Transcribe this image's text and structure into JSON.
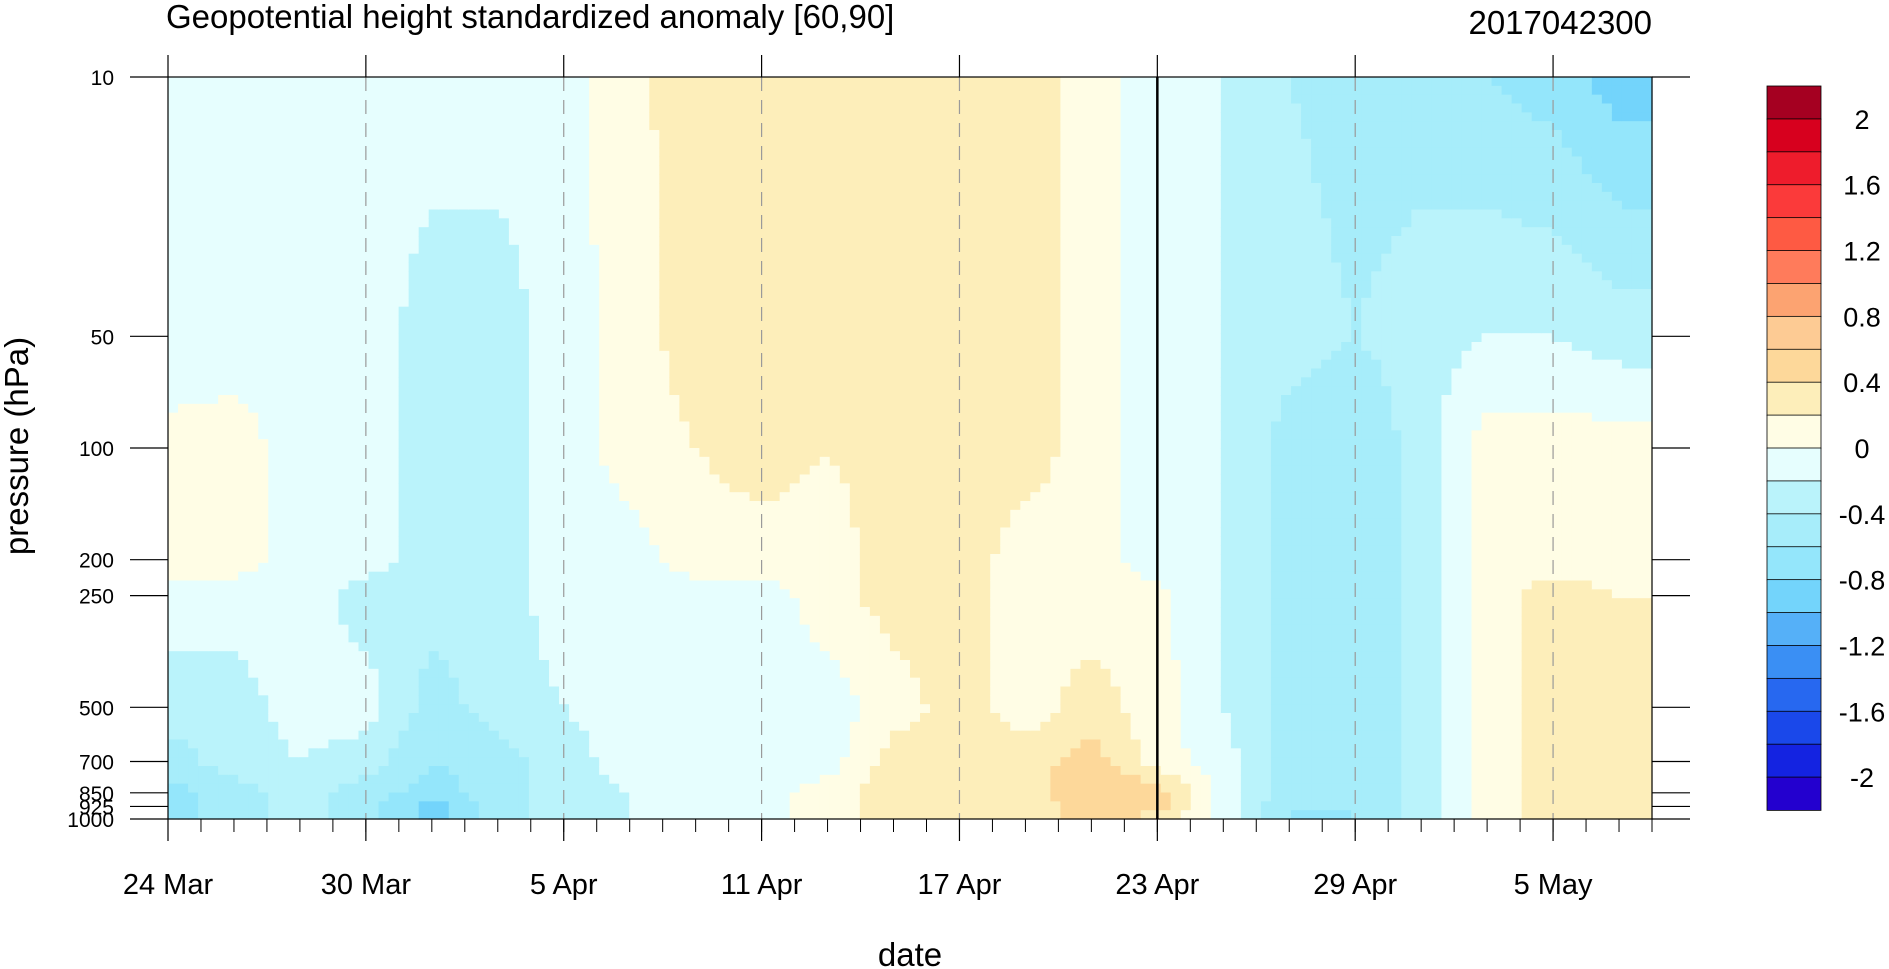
{
  "chart_data": {
    "type": "contour",
    "title": "Geopotential height standardized anomaly [60,90]",
    "timestamp": "2017042300",
    "xlabel": "date",
    "ylabel": "pressure (hPa)",
    "x_ticks": [
      "24 Mar",
      "30 Mar",
      "5 Apr",
      "11 Apr",
      "17 Apr",
      "23 Apr",
      "29 Apr",
      "5 May"
    ],
    "x_range": [
      "24 Mar",
      "8 May"
    ],
    "y_ticks": [
      "10",
      "50",
      "100",
      "200",
      "250",
      "500",
      "700",
      "850",
      "925",
      "1000"
    ],
    "y_range": [
      10,
      1000
    ],
    "y_scale": "log-pressure, top = 10",
    "marked_date": "23 Apr",
    "colorbar": {
      "labels": [
        "2",
        "1.6",
        "1.2",
        "0.8",
        "0.4",
        "0",
        "-0.4",
        "-0.8",
        "-1.2",
        "-1.6",
        "-2"
      ],
      "levels": [
        2.2,
        2.0,
        1.8,
        1.6,
        1.4,
        1.2,
        1.0,
        0.8,
        0.6,
        0.4,
        0.2,
        0.0,
        -0.2,
        -0.4,
        -0.6,
        -0.8,
        -1.0,
        -1.2,
        -1.4,
        -1.6,
        -1.8,
        -2.0,
        -2.2
      ],
      "colors": [
        "#a50021",
        "#d7001e",
        "#ee1c2c",
        "#fb3a3a",
        "#fe5a43",
        "#ff7b5b",
        "#fca371",
        "#fdcb94",
        "#fdd89a",
        "#fdeeba",
        "#fffde5",
        "#e6fefe",
        "#baf3fb",
        "#a7edfa",
        "#94e6fb",
        "#73d4fb",
        "#55b0f8",
        "#3a8ff4",
        "#2768f0",
        "#1a48ea",
        "#1423e1",
        "#2300cf"
      ]
    },
    "dates": [
      "24 Mar",
      "26 Mar",
      "28 Mar",
      "30 Mar",
      "1 Apr",
      "3 Apr",
      "5 Apr",
      "7 Apr",
      "9 Apr",
      "11 Apr",
      "13 Apr",
      "15 Apr",
      "17 Apr",
      "19 Apr",
      "21 Apr",
      "23 Apr",
      "25 Apr",
      "27 Apr",
      "29 Apr",
      "1 May",
      "3 May",
      "5 May",
      "7 May"
    ],
    "levels_hpa": [
      10,
      50,
      100,
      200,
      250,
      500,
      700,
      850,
      925,
      1000
    ],
    "values": [
      [
        -0.2,
        -0.1,
        -0.1,
        -0.1,
        -0.1,
        -0.1,
        -0.1,
        0.15,
        0.3,
        0.3,
        0.3,
        0.3,
        0.3,
        0.3,
        0.1,
        -0.1,
        -0.2,
        -0.4,
        -0.5,
        -0.5,
        -0.6,
        -0.7,
        -0.9
      ],
      [
        -0.2,
        -0.1,
        -0.1,
        -0.1,
        -0.3,
        -0.3,
        -0.1,
        0.1,
        0.3,
        0.3,
        0.3,
        0.3,
        0.3,
        0.3,
        0.1,
        -0.1,
        -0.2,
        -0.3,
        -0.4,
        -0.3,
        -0.2,
        -0.2,
        -0.3
      ],
      [
        0.1,
        0.1,
        -0.1,
        -0.1,
        -0.3,
        -0.3,
        -0.1,
        0.1,
        0.2,
        0.3,
        0.2,
        0.3,
        0.3,
        0.3,
        0.1,
        -0.1,
        -0.2,
        -0.5,
        -0.6,
        -0.3,
        0.1,
        0.1,
        0.1
      ],
      [
        0.1,
        0.1,
        -0.1,
        -0.1,
        -0.3,
        -0.3,
        -0.1,
        -0.1,
        0.1,
        0.1,
        0.1,
        0.3,
        0.3,
        0.1,
        0.1,
        -0.1,
        -0.2,
        -0.5,
        -0.6,
        -0.3,
        0.1,
        0.1,
        0.1
      ],
      [
        -0.1,
        -0.1,
        -0.1,
        -0.3,
        -0.3,
        -0.3,
        -0.1,
        -0.1,
        -0.1,
        -0.1,
        0.1,
        0.3,
        0.3,
        0.1,
        0.1,
        0.05,
        -0.2,
        -0.5,
        -0.6,
        -0.3,
        0.1,
        0.3,
        0.2
      ],
      [
        -0.3,
        -0.3,
        -0.1,
        -0.1,
        -0.5,
        -0.3,
        -0.2,
        -0.1,
        -0.1,
        -0.1,
        -0.1,
        0.1,
        0.3,
        0.1,
        0.3,
        0.1,
        -0.2,
        -0.5,
        -0.6,
        -0.3,
        0.1,
        0.3,
        0.3
      ],
      [
        -0.5,
        -0.3,
        -0.2,
        -0.3,
        -0.6,
        -0.5,
        -0.3,
        -0.1,
        -0.1,
        -0.1,
        -0.1,
        0.3,
        0.3,
        0.3,
        0.5,
        0.1,
        -0.1,
        -0.5,
        -0.6,
        -0.3,
        0.1,
        0.3,
        0.3
      ],
      [
        -0.7,
        -0.5,
        -0.3,
        -0.5,
        -0.7,
        -0.5,
        -0.3,
        -0.2,
        -0.1,
        -0.1,
        0.1,
        0.3,
        0.3,
        0.3,
        0.6,
        0.5,
        -0.1,
        -0.5,
        -0.6,
        -0.3,
        0.1,
        0.3,
        0.3
      ],
      [
        -0.7,
        -0.5,
        -0.3,
        -0.5,
        -0.9,
        -0.5,
        -0.3,
        -0.2,
        -0.1,
        -0.1,
        0.1,
        0.3,
        0.3,
        0.3,
        0.5,
        0.5,
        -0.1,
        -0.6,
        -0.6,
        -0.3,
        0.1,
        0.3,
        0.3
      ],
      [
        -0.7,
        -0.5,
        -0.3,
        -0.5,
        -0.9,
        -0.5,
        -0.3,
        -0.2,
        -0.1,
        -0.1,
        0.1,
        0.3,
        0.3,
        0.3,
        0.5,
        0.3,
        -0.1,
        -0.6,
        -0.6,
        -0.3,
        0.1,
        0.3,
        0.3
      ]
    ]
  }
}
